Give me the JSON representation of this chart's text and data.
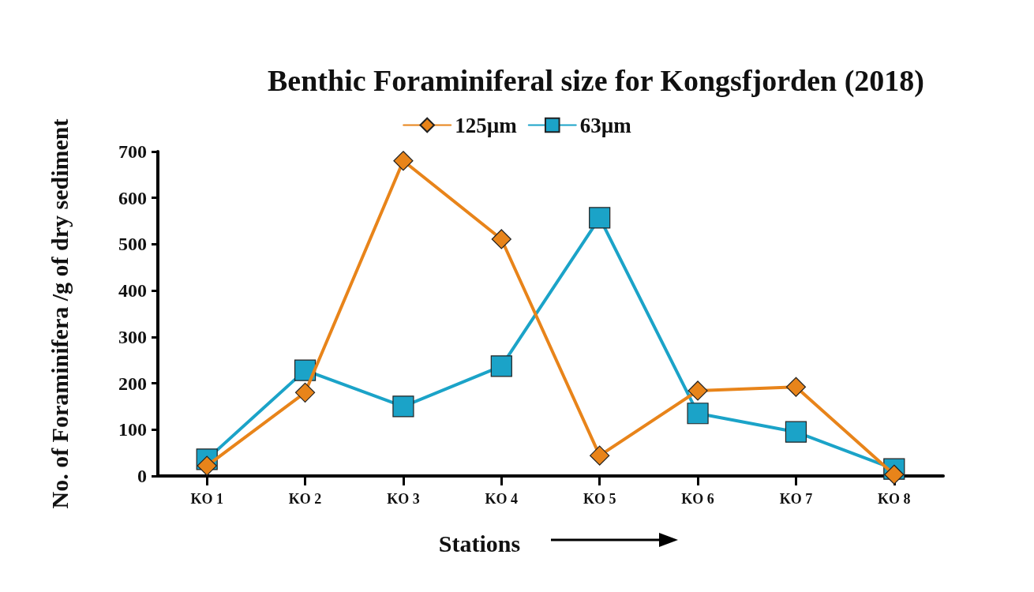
{
  "chart_data": {
    "type": "line",
    "title": "Benthic Foraminiferal size for Kongsfjorden (2018)",
    "xlabel": "Stations",
    "ylabel": "No. of Foraminifera /g of dry sediment",
    "categories": [
      "KO 1",
      "KO 2",
      "KO 3",
      "KO 4",
      "KO 5",
      "KO 6",
      "KO 7",
      "KO 8"
    ],
    "series": [
      {
        "name": "125µm",
        "color": "#e8841a",
        "marker": "diamond",
        "values": [
          22,
          180,
          680,
          511,
          44,
          184,
          192,
          3
        ]
      },
      {
        "name": "63µm",
        "color": "#1ba3c8",
        "marker": "square",
        "values": [
          36,
          228,
          150,
          237,
          557,
          135,
          95,
          15
        ]
      }
    ],
    "ylim": [
      0,
      700
    ],
    "yticks": [
      0,
      100,
      200,
      300,
      400,
      500,
      600,
      700
    ],
    "grid": false,
    "legend": "top",
    "line_style": "solid"
  }
}
